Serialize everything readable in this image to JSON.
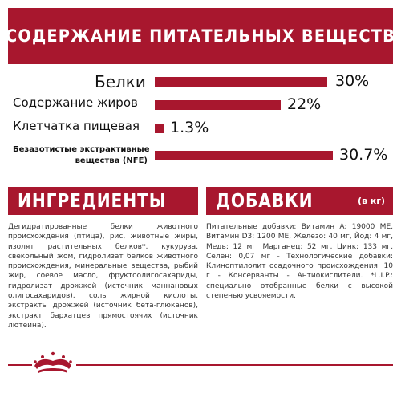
{
  "header": {
    "title": "СОДЕРЖАНИЕ ПИТАТЕЛЬНЫХ ВЕЩЕСТВ"
  },
  "nutrients": [
    {
      "label": "Белки",
      "value": "30%",
      "fraction": 0.3
    },
    {
      "label": "Содержание жиров",
      "value": "22%",
      "fraction": 0.22
    },
    {
      "label": "Клетчатка пищевая",
      "value": "1.3%",
      "fraction": 0.013
    },
    {
      "label_line1": "Безазотистые экстрактивные",
      "label_line2": "вещества (NFE)",
      "value": "30.7%",
      "fraction": 0.307
    }
  ],
  "ingredients": {
    "title": "ИНГРЕДИЕНТЫ",
    "text": "Дегидратированные белки животного происхождения (птица), рис, животные жиры, изолят растительных белков*, кукуруза, свекольный жом, гидролизат белков животного происхождения, минеральные вещества, рыбий жир, соевое масло, фруктоолигосахариды, гидролизат дрожжей (источник маннановых олигосахаридов), соль жирной кислоты, экстракты дрожжей (источник бета-глюканов), экстракт бархатцев прямостоячих (источник лютеина)."
  },
  "additives": {
    "title": "ДОБАВКИ",
    "subtitle": "(в кг)",
    "text": "Питательные добавки: Витамин A: 19000 МЕ, Витамин D3: 1200 МЕ, Железо: 40 мг, Йод: 4 мг, Медь: 12 мг, Марганец: 52 мг, Цинк: 133 мг, Селен: 0,07 мг - Технологические добавки: Клиноптилолит осадочного происхождения: 10 г - Консерванты - Антиокислители. *L.I.P.: специально отобранные белки с высокой степенью усвояемости."
  },
  "brand": {
    "logo": "crown-icon"
  },
  "colors": {
    "accent": "#a8172e",
    "text": "#1a1a1a"
  }
}
